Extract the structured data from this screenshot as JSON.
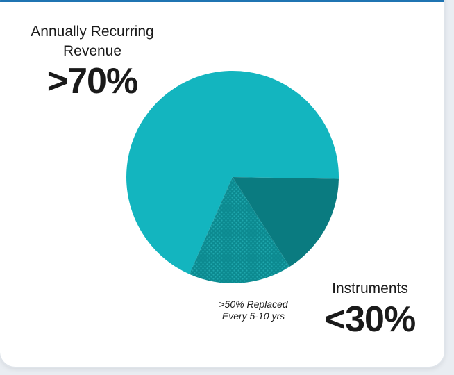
{
  "chart_data": {
    "type": "pie",
    "slices": [
      {
        "label": "Annually Recurring Revenue",
        "display_value": ">70%",
        "value": 70,
        "color": "#13b5bf"
      },
      {
        "label": "Instruments",
        "display_value": "<30%",
        "value": 30,
        "color": "#0a7b80",
        "sub_segment": {
          "note": ">50% Replaced Every 5-10 yrs",
          "fraction_of_parent": 0.5,
          "pattern": "dotted"
        }
      }
    ]
  },
  "labels": {
    "recurring_line1": "Annually Recurring",
    "recurring_line2": "Revenue",
    "recurring_value": ">70%",
    "instruments_line1": "Instruments",
    "instruments_value": "<30%",
    "note_line1": ">50% Replaced",
    "note_line2": "Every 5-10 yrs"
  },
  "colors": {
    "header_bar": "#1f74b2",
    "recurring": "#13b5bf",
    "instruments": "#0a7b80"
  }
}
